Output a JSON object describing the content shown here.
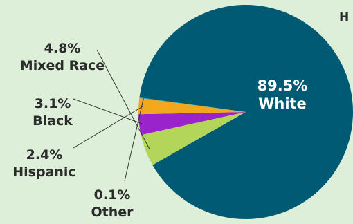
{
  "corner_text": "H",
  "chart_data": {
    "type": "pie",
    "title": "",
    "slices": [
      {
        "label": "White",
        "value": 89.5,
        "display": "89.5%",
        "color": "#005a74"
      },
      {
        "label": "Mixed Race",
        "value": 4.8,
        "display": "4.8%",
        "color": "#b3d65a"
      },
      {
        "label": "Black",
        "value": 3.1,
        "display": "3.1%",
        "color": "#9b23cc"
      },
      {
        "label": "Hispanic",
        "value": 2.4,
        "display": "2.4%",
        "color": "#f3a71c"
      },
      {
        "label": "Other",
        "value": 0.1,
        "display": "0.1%",
        "color": "#2aa8c8"
      }
    ]
  }
}
